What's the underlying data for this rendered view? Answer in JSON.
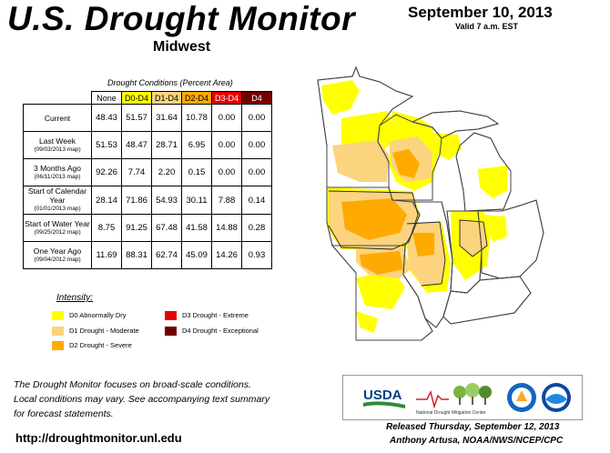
{
  "header": {
    "title": "U.S. Drought Monitor",
    "region": "Midwest",
    "date": "September 10, 2013",
    "valid": "Valid 7 a.m. EST"
  },
  "table": {
    "caption": "Drought Conditions (Percent Area)",
    "columns": [
      "None",
      "D0-D4",
      "D1-D4",
      "D2-D4",
      "D3-D4",
      "D4"
    ],
    "column_colors": [
      "#ffffff",
      "#ffff00",
      "#fcd37f",
      "#ffaa00",
      "#e60000",
      "#730000"
    ],
    "rows": [
      {
        "label": "Current",
        "sub": "",
        "values": [
          "48.43",
          "51.57",
          "31.64",
          "10.78",
          "0.00",
          "0.00"
        ]
      },
      {
        "label": "Last Week",
        "sub": "(09/03/2013 map)",
        "values": [
          "51.53",
          "48.47",
          "28.71",
          "6.95",
          "0.00",
          "0.00"
        ]
      },
      {
        "label": "3 Months Ago",
        "sub": "(06/11/2013 map)",
        "values": [
          "92.26",
          "7.74",
          "2.20",
          "0.15",
          "0.00",
          "0.00"
        ]
      },
      {
        "label": "Start of Calendar Year",
        "sub": "(01/01/2013 map)",
        "values": [
          "28.14",
          "71.86",
          "54.93",
          "30.11",
          "7.88",
          "0.14"
        ]
      },
      {
        "label": "Start of Water Year",
        "sub": "(09/25/2012 map)",
        "values": [
          "8.75",
          "91.25",
          "67.48",
          "41.58",
          "14.88",
          "0.28"
        ]
      },
      {
        "label": "One Year Ago",
        "sub": "(09/04/2012 map)",
        "values": [
          "11.69",
          "88.31",
          "62.74",
          "45.09",
          "14.26",
          "0.93"
        ]
      }
    ]
  },
  "legend": {
    "title": "Intensity:",
    "items": [
      {
        "label": "D0 Abnormally Dry",
        "color": "#ffff00"
      },
      {
        "label": "D1 Drought - Moderate",
        "color": "#fcd37f"
      },
      {
        "label": "D2 Drought - Severe",
        "color": "#ffaa00"
      },
      {
        "label": "D3 Drought - Extreme",
        "color": "#e60000"
      },
      {
        "label": "D4 Drought - Exceptional",
        "color": "#730000"
      }
    ]
  },
  "footer": {
    "note_lines": [
      "The Drought Monitor focuses on broad-scale conditions.",
      "Local conditions may vary. See accompanying text summary",
      "for forecast statements."
    ],
    "url": "http://droughtmonitor.unl.edu",
    "released": "Released Thursday, September 12, 2013",
    "author": "Anthony Artusa, NOAA/NWS/NCEP/CPC"
  },
  "logos": {
    "usda": "USDA",
    "ndmc": "National Drought Mitigation Center"
  }
}
